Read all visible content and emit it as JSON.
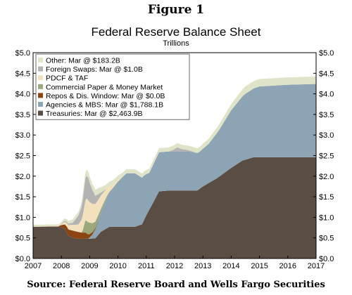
{
  "figure_label": "Figure 1",
  "source": "Source:  Federal Reserve Board and Wells Fargo Securities",
  "chart_data": {
    "type": "area",
    "title": "Federal Reserve Balance Sheet",
    "subtitle": "Trillions",
    "x_ticks": [
      "2007",
      "2008",
      "2009",
      "2010",
      "2011",
      "2012",
      "2013",
      "2014",
      "2015",
      "2016",
      "2017"
    ],
    "x_range": [
      2007,
      2017
    ],
    "y_ticks": [
      "$0.0",
      "$0.5",
      "$1.0",
      "$1.5",
      "$2.0",
      "$2.5",
      "$3.0",
      "$3.5",
      "$4.0",
      "$4.5",
      "$5.0"
    ],
    "ylim": [
      0,
      5
    ],
    "y_label_sides": "both",
    "legend_position": "top-left",
    "series": [
      {
        "name": "Treasuries: Mar @ $2,463.9B",
        "color": "#5a4d43",
        "points": [
          [
            2007.0,
            0.77
          ],
          [
            2007.95,
            0.77
          ],
          [
            2008.12,
            0.72
          ],
          [
            2008.25,
            0.55
          ],
          [
            2008.5,
            0.48
          ],
          [
            2008.75,
            0.48
          ],
          [
            2009.0,
            0.48
          ],
          [
            2009.2,
            0.49
          ],
          [
            2009.4,
            0.65
          ],
          [
            2009.7,
            0.77
          ],
          [
            2010.0,
            0.77
          ],
          [
            2010.6,
            0.77
          ],
          [
            2010.85,
            0.83
          ],
          [
            2011.0,
            1.05
          ],
          [
            2011.2,
            1.3
          ],
          [
            2011.45,
            1.63
          ],
          [
            2011.8,
            1.65
          ],
          [
            2012.3,
            1.65
          ],
          [
            2012.8,
            1.65
          ],
          [
            2013.0,
            1.75
          ],
          [
            2013.5,
            1.95
          ],
          [
            2014.0,
            2.2
          ],
          [
            2014.4,
            2.38
          ],
          [
            2014.8,
            2.46
          ],
          [
            2015.2,
            2.46
          ],
          [
            2016.0,
            2.46
          ],
          [
            2017.0,
            2.46
          ]
        ]
      },
      {
        "name": "Agencies & MBS: Mar @ $1,788.1B",
        "color": "#8da4b5",
        "points": [
          [
            2007.0,
            0.0
          ],
          [
            2008.95,
            0.0
          ],
          [
            2009.1,
            0.1
          ],
          [
            2009.3,
            0.35
          ],
          [
            2009.6,
            0.75
          ],
          [
            2010.0,
            1.1
          ],
          [
            2010.3,
            1.3
          ],
          [
            2010.6,
            1.3
          ],
          [
            2010.9,
            1.1
          ],
          [
            2011.1,
            0.9
          ],
          [
            2011.45,
            0.95
          ],
          [
            2012.0,
            0.95
          ],
          [
            2012.5,
            0.95
          ],
          [
            2012.9,
            0.9
          ],
          [
            2013.2,
            0.95
          ],
          [
            2013.6,
            1.15
          ],
          [
            2014.0,
            1.4
          ],
          [
            2014.5,
            1.6
          ],
          [
            2015.0,
            1.72
          ],
          [
            2016.0,
            1.76
          ],
          [
            2017.0,
            1.78
          ]
        ]
      },
      {
        "name": "Repos & Dis. Window: Mar @ $0.0B",
        "color": "#8b4513",
        "points": [
          [
            2007.0,
            0.0
          ],
          [
            2007.9,
            0.01
          ],
          [
            2008.1,
            0.1
          ],
          [
            2008.2,
            0.15
          ],
          [
            2008.5,
            0.18
          ],
          [
            2008.7,
            0.15
          ],
          [
            2008.85,
            0.15
          ],
          [
            2009.0,
            0.08
          ],
          [
            2009.2,
            0.03
          ],
          [
            2009.4,
            0.0
          ],
          [
            2017.0,
            0.0
          ]
        ]
      },
      {
        "name": "Commercial Paper & Money Market",
        "color": "#9aa87c",
        "points": [
          [
            2007.0,
            0.0
          ],
          [
            2008.7,
            0.0
          ],
          [
            2008.75,
            0.05
          ],
          [
            2008.85,
            0.3
          ],
          [
            2008.95,
            0.3
          ],
          [
            2009.05,
            0.25
          ],
          [
            2009.2,
            0.15
          ],
          [
            2009.4,
            0.08
          ],
          [
            2009.6,
            0.03
          ],
          [
            2009.8,
            0.0
          ],
          [
            2017.0,
            0.0
          ]
        ]
      },
      {
        "name": "PDCF & TAF",
        "color": "#f2e1bc",
        "points": [
          [
            2007.0,
            0.0
          ],
          [
            2007.95,
            0.0
          ],
          [
            2008.05,
            0.04
          ],
          [
            2008.3,
            0.12
          ],
          [
            2008.6,
            0.18
          ],
          [
            2008.75,
            0.35
          ],
          [
            2008.9,
            0.55
          ],
          [
            2009.0,
            0.5
          ],
          [
            2009.15,
            0.45
          ],
          [
            2009.35,
            0.35
          ],
          [
            2009.55,
            0.22
          ],
          [
            2009.8,
            0.1
          ],
          [
            2010.0,
            0.04
          ],
          [
            2010.2,
            0.0
          ],
          [
            2017.0,
            0.0
          ]
        ]
      },
      {
        "name": "Foreign Swaps: Mar @ $1.0B",
        "color": "#b3b3b3",
        "points": [
          [
            2007.0,
            0.0
          ],
          [
            2007.95,
            0.0
          ],
          [
            2008.05,
            0.02
          ],
          [
            2008.4,
            0.05
          ],
          [
            2008.7,
            0.3
          ],
          [
            2008.85,
            0.55
          ],
          [
            2008.95,
            0.55
          ],
          [
            2009.05,
            0.4
          ],
          [
            2009.2,
            0.2
          ],
          [
            2009.4,
            0.07
          ],
          [
            2009.6,
            0.0
          ],
          [
            2011.8,
            0.0
          ],
          [
            2011.95,
            0.04
          ],
          [
            2012.1,
            0.1
          ],
          [
            2012.25,
            0.06
          ],
          [
            2012.5,
            0.03
          ],
          [
            2012.8,
            0.0
          ],
          [
            2017.0,
            0.0
          ]
        ]
      },
      {
        "name": "Other: Mar @ $183.2B",
        "color": "#dfe3c7",
        "points": [
          [
            2007.0,
            0.05
          ],
          [
            2008.0,
            0.05
          ],
          [
            2008.7,
            0.1
          ],
          [
            2008.9,
            0.15
          ],
          [
            2009.0,
            0.15
          ],
          [
            2009.3,
            0.15
          ],
          [
            2009.6,
            0.1
          ],
          [
            2010.0,
            0.1
          ],
          [
            2011.0,
            0.1
          ],
          [
            2012.0,
            0.1
          ],
          [
            2013.0,
            0.12
          ],
          [
            2014.0,
            0.15
          ],
          [
            2014.5,
            0.18
          ],
          [
            2015.0,
            0.18
          ],
          [
            2016.0,
            0.18
          ],
          [
            2017.0,
            0.18
          ]
        ]
      }
    ]
  }
}
